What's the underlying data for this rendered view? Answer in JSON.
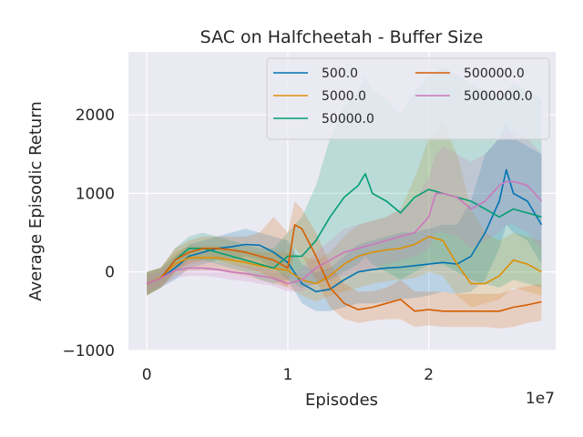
{
  "chart_data": {
    "type": "line",
    "title": "SAC on Halfcheetah - Buffer Size",
    "xlabel": "Episodes",
    "ylabel": "Average Episodic Return",
    "x_multiplier_label": "1e7",
    "xlim": [
      -0.13,
      2.9
    ],
    "ylim": [
      -1000,
      2800
    ],
    "x_ticks": [
      0,
      1,
      2
    ],
    "x_tick_labels": [
      "0",
      "1",
      "2"
    ],
    "y_ticks": [
      -1000,
      0,
      1000,
      2000
    ],
    "y_tick_labels": [
      "−1000",
      "0",
      "1000",
      "2000"
    ],
    "grid": true,
    "legend_position": "top-right",
    "legend_columns": 2,
    "series": [
      {
        "name": "500.0",
        "color": "#0173b2",
        "x": [
          0,
          0.1,
          0.2,
          0.3,
          0.4,
          0.5,
          0.6,
          0.7,
          0.8,
          0.9,
          1.0,
          1.1,
          1.2,
          1.3,
          1.4,
          1.5,
          1.6,
          1.7,
          1.8,
          1.9,
          2.0,
          2.1,
          2.2,
          2.3,
          2.4,
          2.5,
          2.55,
          2.6,
          2.7,
          2.8
        ],
        "y": [
          -150,
          -80,
          50,
          200,
          250,
          300,
          320,
          350,
          340,
          250,
          120,
          -150,
          -250,
          -220,
          -100,
          0,
          30,
          50,
          60,
          80,
          100,
          120,
          100,
          200,
          500,
          900,
          1300,
          1000,
          900,
          600
        ],
        "lower": [
          -300,
          -200,
          -100,
          50,
          100,
          150,
          150,
          200,
          150,
          50,
          -100,
          -400,
          -500,
          -500,
          -450,
          -400,
          -400,
          -380,
          -350,
          -330,
          -300,
          -250,
          -280,
          -250,
          -100,
          300,
          600,
          500,
          400,
          100
        ],
        "upper": [
          0,
          50,
          200,
          350,
          400,
          450,
          500,
          550,
          500,
          450,
          400,
          100,
          0,
          50,
          200,
          350,
          400,
          450,
          500,
          500,
          550,
          600,
          600,
          900,
          1500,
          1700,
          1900,
          1700,
          1600,
          1500
        ]
      },
      {
        "name": "5000.0",
        "color": "#de8f05",
        "x": [
          0,
          0.1,
          0.2,
          0.3,
          0.4,
          0.5,
          0.6,
          0.7,
          0.8,
          0.9,
          1.0,
          1.1,
          1.2,
          1.3,
          1.4,
          1.5,
          1.6,
          1.7,
          1.8,
          1.9,
          2.0,
          2.1,
          2.2,
          2.3,
          2.4,
          2.5,
          2.6,
          2.7,
          2.8
        ],
        "y": [
          -150,
          -70,
          100,
          180,
          180,
          180,
          150,
          120,
          80,
          50,
          20,
          -100,
          -150,
          -50,
          100,
          200,
          250,
          280,
          300,
          350,
          450,
          400,
          100,
          -150,
          -150,
          -50,
          150,
          100,
          0
        ],
        "lower": [
          -300,
          -200,
          -50,
          20,
          20,
          20,
          -20,
          -50,
          -100,
          -150,
          -200,
          -300,
          -380,
          -300,
          -250,
          -200,
          -150,
          -120,
          -100,
          -80,
          0,
          -50,
          -300,
          -450,
          -400,
          -350,
          -200,
          -250,
          -300
        ],
        "upper": [
          0,
          60,
          250,
          330,
          330,
          330,
          300,
          280,
          250,
          250,
          250,
          200,
          150,
          250,
          450,
          600,
          650,
          700,
          800,
          1200,
          1700,
          1900,
          1500,
          800,
          500,
          400,
          500,
          450,
          400
        ]
      },
      {
        "name": "50000.0",
        "color": "#029e73",
        "x": [
          0,
          0.1,
          0.2,
          0.3,
          0.4,
          0.5,
          0.6,
          0.7,
          0.8,
          0.9,
          1.0,
          1.1,
          1.2,
          1.3,
          1.4,
          1.5,
          1.55,
          1.6,
          1.7,
          1.8,
          1.9,
          2.0,
          2.1,
          2.2,
          2.3,
          2.4,
          2.5,
          2.6,
          2.7,
          2.8
        ],
        "y": [
          -150,
          -80,
          150,
          300,
          300,
          250,
          200,
          150,
          100,
          50,
          200,
          200,
          400,
          700,
          950,
          1100,
          1250,
          1000,
          900,
          750,
          950,
          1050,
          1000,
          950,
          900,
          800,
          700,
          800,
          750,
          700
        ],
        "lower": [
          -300,
          -200,
          0,
          150,
          150,
          100,
          50,
          0,
          -100,
          -150,
          -100,
          -200,
          -150,
          -100,
          0,
          100,
          200,
          100,
          0,
          -100,
          0,
          100,
          100,
          0,
          -100,
          -150,
          -200,
          -100,
          -150,
          -200
        ],
        "upper": [
          0,
          50,
          300,
          450,
          500,
          450,
          400,
          350,
          300,
          300,
          500,
          700,
          1100,
          1700,
          2100,
          2300,
          2500,
          2300,
          2200,
          2000,
          2300,
          2500,
          2600,
          2500,
          2400,
          2300,
          2200,
          2400,
          2300,
          2200
        ]
      },
      {
        "name": "500000.0",
        "color": "#d55e00",
        "x": [
          0,
          0.1,
          0.2,
          0.3,
          0.4,
          0.5,
          0.6,
          0.7,
          0.8,
          0.9,
          1.0,
          1.05,
          1.1,
          1.2,
          1.3,
          1.4,
          1.5,
          1.6,
          1.7,
          1.8,
          1.9,
          2.0,
          2.1,
          2.2,
          2.3,
          2.4,
          2.5,
          2.6,
          2.7,
          2.8
        ],
        "y": [
          -150,
          -80,
          150,
          250,
          300,
          300,
          280,
          250,
          200,
          150,
          50,
          600,
          550,
          200,
          -200,
          -400,
          -480,
          -450,
          -400,
          -350,
          -500,
          -480,
          -500,
          -500,
          -500,
          -500,
          -500,
          -450,
          -420,
          -380
        ],
        "lower": [
          -300,
          -200,
          0,
          100,
          150,
          150,
          100,
          50,
          0,
          -100,
          -200,
          300,
          200,
          -100,
          -450,
          -600,
          -650,
          -620,
          -600,
          -600,
          -700,
          -680,
          -700,
          -700,
          -700,
          -700,
          -720,
          -700,
          -650,
          -620
        ],
        "upper": [
          0,
          50,
          300,
          400,
          450,
          450,
          450,
          450,
          500,
          700,
          500,
          900,
          800,
          500,
          100,
          -150,
          -250,
          -250,
          -200,
          -100,
          -250,
          -250,
          -250,
          -280,
          -280,
          -280,
          -280,
          -220,
          -180,
          -150
        ]
      },
      {
        "name": "5000000.0",
        "color": "#cc78bc",
        "x": [
          0,
          0.1,
          0.2,
          0.3,
          0.4,
          0.5,
          0.6,
          0.7,
          0.8,
          0.9,
          1.0,
          1.1,
          1.2,
          1.3,
          1.4,
          1.5,
          1.6,
          1.7,
          1.8,
          1.9,
          2.0,
          2.05,
          2.1,
          2.2,
          2.3,
          2.4,
          2.5,
          2.55,
          2.6,
          2.7,
          2.8
        ],
        "y": [
          -150,
          -80,
          20,
          50,
          50,
          30,
          0,
          -20,
          -50,
          -80,
          -150,
          -100,
          50,
          150,
          250,
          300,
          350,
          400,
          450,
          500,
          700,
          1000,
          1000,
          950,
          800,
          900,
          1100,
          1150,
          1150,
          1100,
          900
        ],
        "lower": [
          -250,
          -180,
          -80,
          -50,
          -50,
          -70,
          -100,
          -120,
          -150,
          -180,
          -250,
          -250,
          -150,
          -100,
          -50,
          0,
          50,
          100,
          150,
          200,
          300,
          500,
          500,
          450,
          300,
          400,
          500,
          600,
          600,
          500,
          300
        ],
        "upper": [
          -50,
          20,
          120,
          150,
          150,
          130,
          100,
          80,
          50,
          20,
          -50,
          50,
          250,
          400,
          550,
          600,
          650,
          700,
          800,
          900,
          1200,
          1500,
          1600,
          1500,
          1400,
          1500,
          1700,
          1800,
          1800,
          1700,
          1500
        ]
      }
    ]
  }
}
